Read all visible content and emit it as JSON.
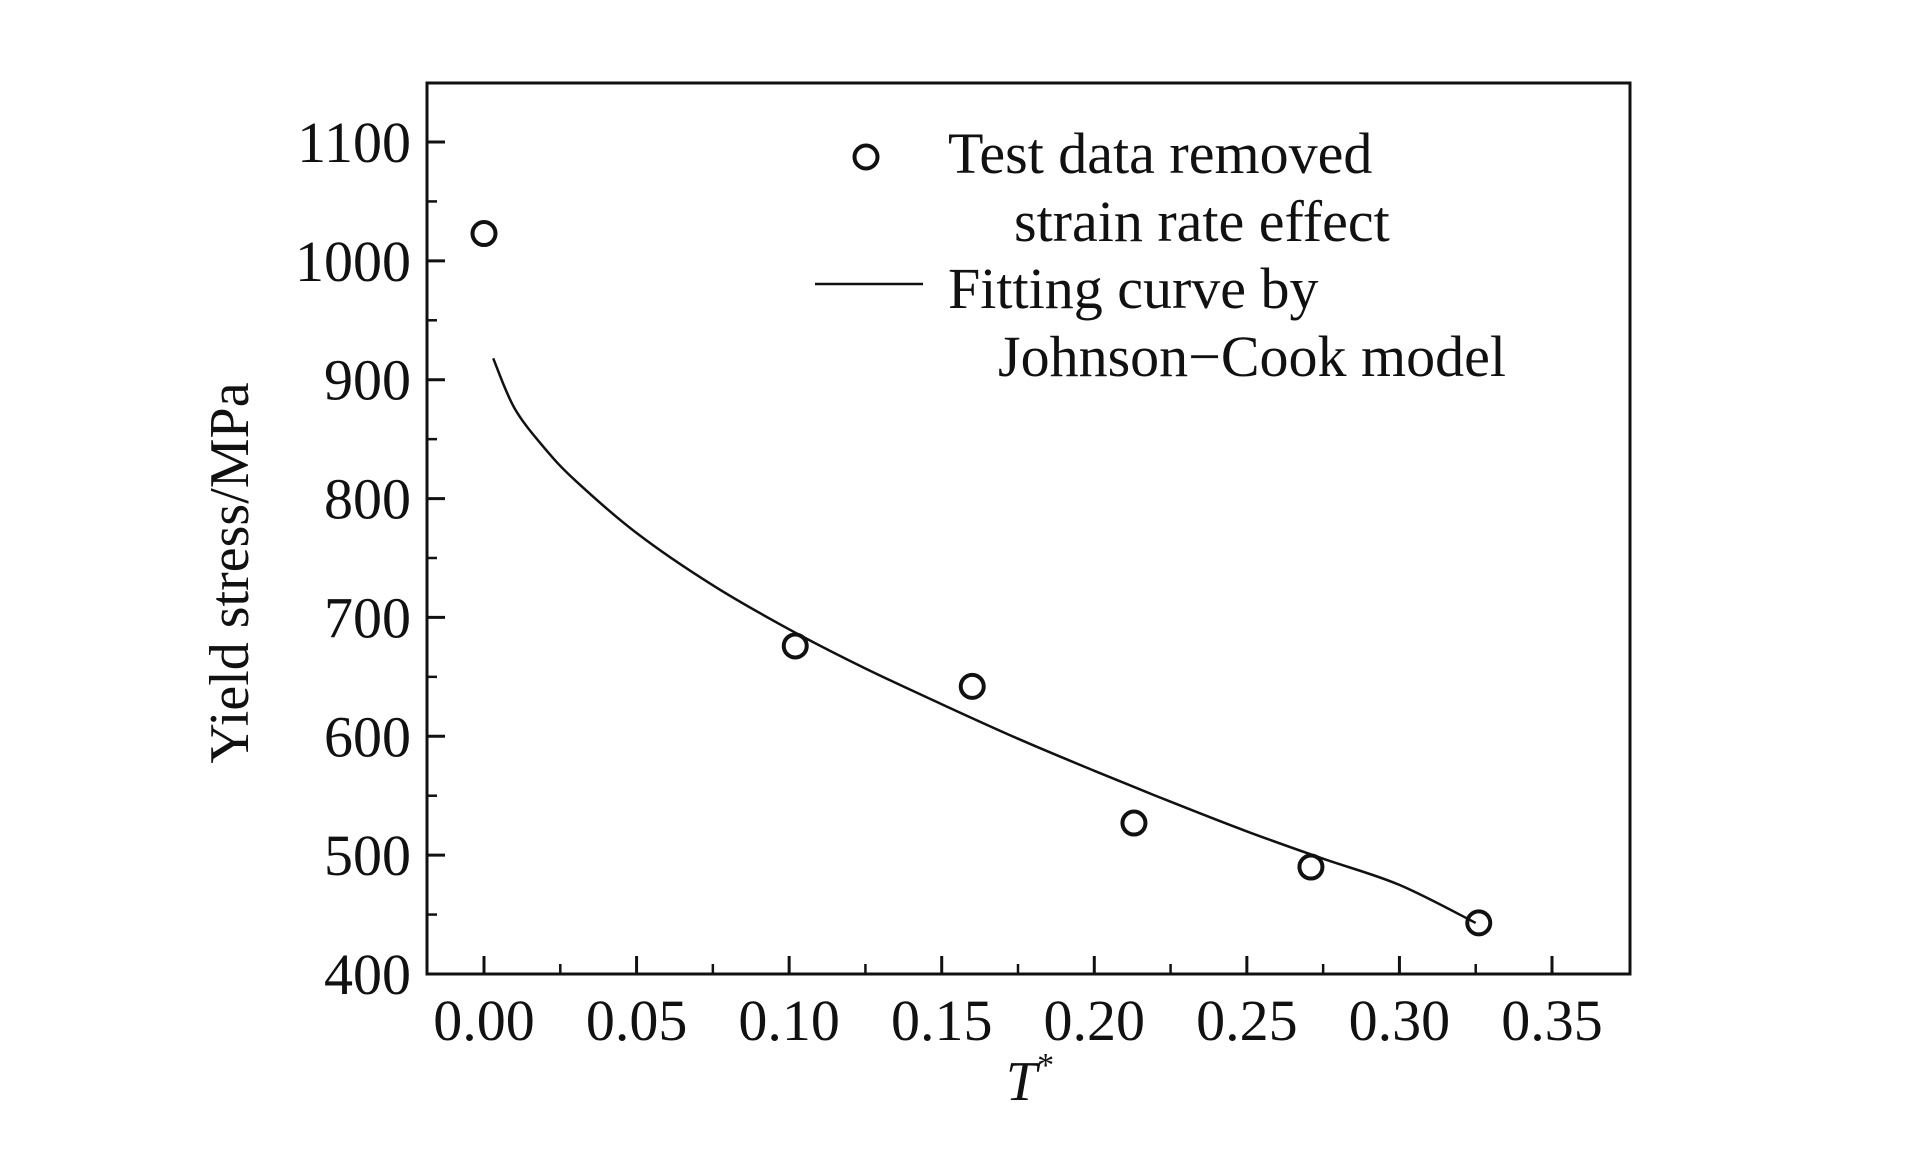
{
  "chart_data": {
    "type": "scatter",
    "title": "",
    "xlabel": "T",
    "xlabel_superscript": "*",
    "ylabel": "Yield stress/MPa",
    "xlim": [
      -0.02,
      0.375
    ],
    "ylim": [
      400,
      1150
    ],
    "x_ticks": [
      0.0,
      0.05,
      0.1,
      0.15,
      0.2,
      0.25,
      0.3,
      0.35
    ],
    "x_tick_labels": [
      "0.00",
      "0.05",
      "0.10",
      "0.15",
      "0.20",
      "0.25",
      "0.30",
      "0.35"
    ],
    "y_ticks": [
      400,
      500,
      600,
      700,
      800,
      900,
      1000,
      1100
    ],
    "y_tick_labels": [
      "400",
      "500",
      "600",
      "700",
      "800",
      "900",
      "1000",
      "1100"
    ],
    "grid": false,
    "legend_position": "top-right",
    "series": [
      {
        "name": "Test data removed strain rate effect",
        "legend_lines": [
          "Test data removed",
          "strain rate effect"
        ],
        "style": "open-circle-markers",
        "x": [
          0.0,
          0.102,
          0.16,
          0.213,
          0.271,
          0.326
        ],
        "y": [
          1023,
          676,
          642,
          527,
          490,
          443
        ]
      },
      {
        "name": "Fitting curve by Johnson−Cook model",
        "legend_lines": [
          "Fitting curve by",
          "Johnson−Cook model"
        ],
        "style": "solid-line",
        "x": [
          0.003,
          0.01,
          0.02,
          0.03,
          0.05,
          0.075,
          0.1,
          0.125,
          0.15,
          0.175,
          0.2,
          0.225,
          0.25,
          0.275,
          0.3,
          0.325
        ],
        "y": [
          918,
          876,
          842,
          815,
          771,
          727,
          690,
          657,
          627,
          598,
          571,
          545,
          520,
          497,
          475,
          443
        ]
      }
    ],
    "colors": {
      "ink": "#111111",
      "background": "#ffffff"
    }
  }
}
